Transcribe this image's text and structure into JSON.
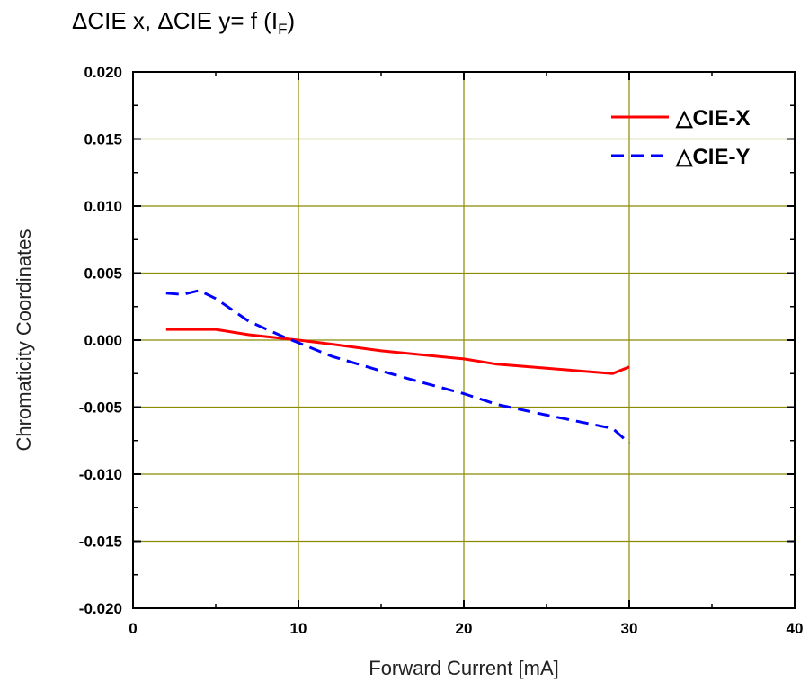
{
  "title": {
    "prefix": "ΔCIE x, ΔCIE y= f (I",
    "subscript": "F",
    "suffix": ")"
  },
  "colors": {
    "grid": "#8b8b00",
    "series_x": "#ff0000",
    "series_y": "#0000ff"
  },
  "chart_data": {
    "type": "line",
    "xlabel": "Forward Current [mA]",
    "ylabel": "Chromaticity Coordinates",
    "xlim": [
      0,
      40
    ],
    "ylim": [
      -0.02,
      0.02
    ],
    "x_ticks": [
      "0",
      "10",
      "20",
      "30",
      "40"
    ],
    "y_ticks": [
      "0.020",
      "0.015",
      "0.010",
      "0.005",
      "0.000",
      "-0.005",
      "-0.010",
      "-0.015",
      "-0.020"
    ],
    "grid": true,
    "legend_position": "top-right",
    "series": [
      {
        "name": "△CIE-X",
        "style": "solid",
        "x": [
          2,
          5,
          7,
          10,
          12,
          15,
          20,
          22,
          25,
          29,
          30
        ],
        "y": [
          0.0008,
          0.0008,
          0.0004,
          0.0,
          -0.0003,
          -0.0008,
          -0.0014,
          -0.0018,
          -0.0021,
          -0.0025,
          -0.002
        ]
      },
      {
        "name": "△CIE-Y",
        "style": "dashed",
        "x": [
          2,
          3,
          4,
          5,
          7,
          9,
          10,
          12,
          15,
          17,
          20,
          22,
          25,
          29,
          30
        ],
        "y": [
          0.0035,
          0.0034,
          0.0037,
          0.0031,
          0.0014,
          0.0003,
          -0.0002,
          -0.0012,
          -0.0023,
          -0.003,
          -0.004,
          -0.0048,
          -0.0056,
          -0.0066,
          -0.0077
        ]
      }
    ]
  }
}
